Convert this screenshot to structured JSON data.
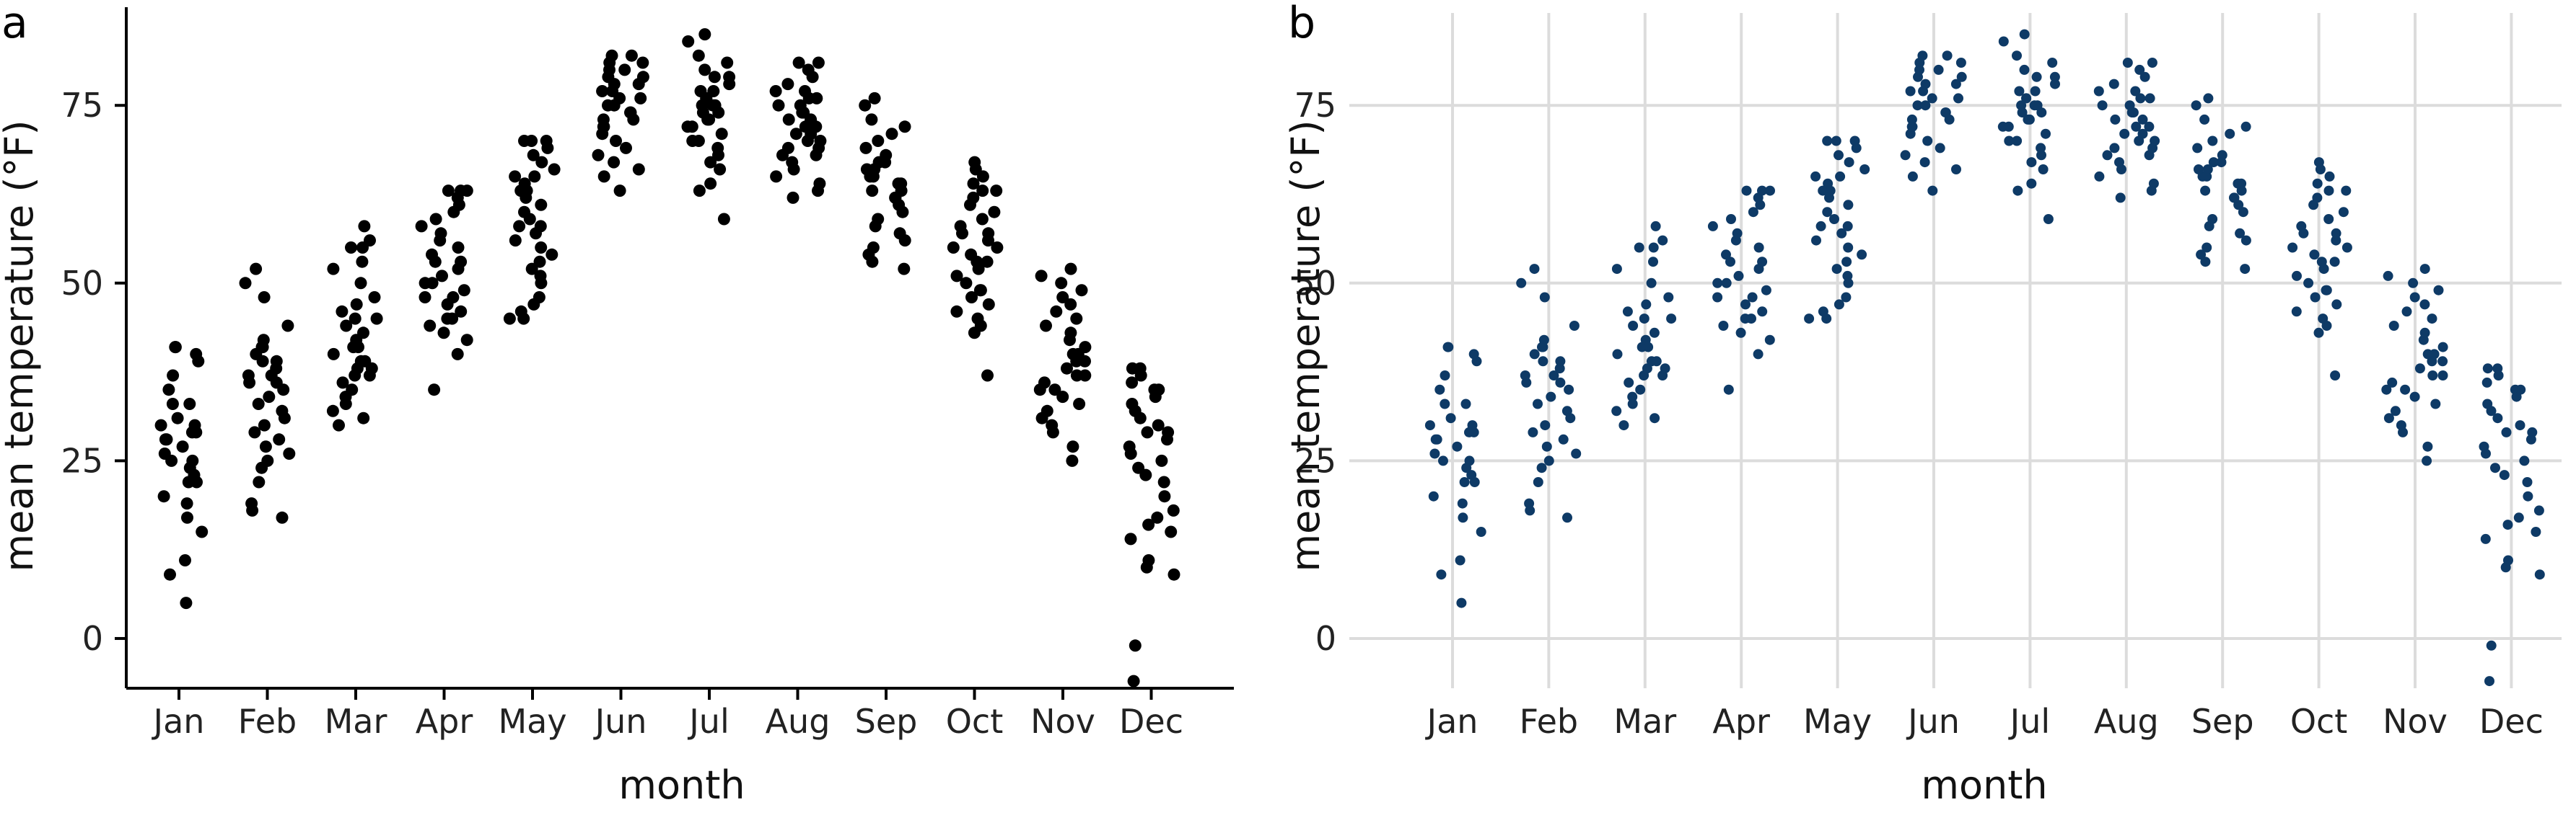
{
  "chart_data": [
    {
      "type": "scatter",
      "panel_label": "a",
      "style": "classic",
      "title": "",
      "xlabel": "month",
      "ylabel": "mean temperature (°F)",
      "categories": [
        "Jan",
        "Feb",
        "Mar",
        "Apr",
        "May",
        "Jun",
        "Jul",
        "Aug",
        "Sep",
        "Oct",
        "Nov",
        "Dec"
      ],
      "yticks": [
        0,
        25,
        50,
        75
      ],
      "ylim": [
        -7,
        88
      ],
      "grid": false,
      "point_color": "#000000",
      "values": [
        [
          5,
          9,
          11,
          15,
          17,
          19,
          20,
          22,
          22,
          23,
          24,
          25,
          25,
          26,
          27,
          28,
          28,
          29,
          29,
          30,
          30,
          31,
          33,
          33,
          35,
          37,
          39,
          40,
          41,
          41
        ],
        [
          17,
          18,
          19,
          22,
          24,
          25,
          26,
          27,
          28,
          29,
          30,
          31,
          32,
          33,
          34,
          35,
          36,
          36,
          37,
          37,
          38,
          39,
          39,
          40,
          41,
          41,
          42,
          44,
          48,
          50,
          52
        ],
        [
          30,
          31,
          32,
          33,
          34,
          35,
          36,
          37,
          37,
          38,
          38,
          39,
          39,
          40,
          41,
          41,
          42,
          43,
          44,
          45,
          45,
          46,
          47,
          48,
          50,
          52,
          53,
          55,
          55,
          56,
          58
        ],
        [
          35,
          40,
          42,
          43,
          44,
          45,
          45,
          46,
          47,
          48,
          48,
          49,
          50,
          50,
          51,
          52,
          53,
          53,
          54,
          55,
          56,
          57,
          58,
          59,
          60,
          61,
          62,
          63,
          63,
          63
        ],
        [
          45,
          45,
          46,
          47,
          48,
          50,
          51,
          52,
          53,
          54,
          55,
          56,
          57,
          58,
          58,
          59,
          60,
          61,
          62,
          63,
          63,
          64,
          65,
          65,
          66,
          67,
          68,
          69,
          70,
          70,
          70
        ],
        [
          63,
          65,
          66,
          67,
          68,
          69,
          70,
          71,
          72,
          72,
          73,
          73,
          74,
          74,
          75,
          75,
          76,
          76,
          77,
          77,
          78,
          78,
          79,
          79,
          80,
          80,
          81,
          81,
          82,
          82
        ],
        [
          59,
          63,
          64,
          66,
          67,
          68,
          69,
          70,
          70,
          71,
          72,
          72,
          73,
          73,
          74,
          74,
          75,
          75,
          75,
          76,
          76,
          77,
          77,
          78,
          79,
          79,
          80,
          81,
          82,
          84,
          85
        ],
        [
          62,
          63,
          64,
          65,
          66,
          67,
          68,
          68,
          69,
          69,
          70,
          70,
          71,
          71,
          72,
          72,
          73,
          73,
          74,
          74,
          75,
          75,
          76,
          76,
          77,
          77,
          78,
          79,
          80,
          81,
          81
        ],
        [
          52,
          53,
          54,
          55,
          56,
          57,
          58,
          59,
          60,
          61,
          62,
          62,
          63,
          63,
          64,
          64,
          65,
          65,
          66,
          66,
          67,
          67,
          68,
          69,
          70,
          71,
          72,
          73,
          75,
          76
        ],
        [
          37,
          43,
          44,
          45,
          46,
          47,
          48,
          49,
          49,
          50,
          51,
          52,
          53,
          53,
          54,
          55,
          55,
          56,
          57,
          57,
          58,
          59,
          60,
          61,
          62,
          63,
          63,
          64,
          65,
          66,
          67
        ],
        [
          25,
          27,
          29,
          30,
          31,
          32,
          33,
          34,
          35,
          35,
          36,
          37,
          37,
          38,
          39,
          39,
          40,
          40,
          41,
          42,
          43,
          44,
          45,
          46,
          47,
          48,
          49,
          50,
          51,
          52
        ],
        [
          -6,
          -1,
          9,
          10,
          11,
          14,
          15,
          16,
          17,
          18,
          20,
          22,
          23,
          24,
          25,
          26,
          27,
          28,
          29,
          29,
          30,
          31,
          32,
          33,
          34,
          35,
          35,
          36,
          37,
          38,
          38
        ]
      ]
    },
    {
      "type": "scatter",
      "panel_label": "b",
      "style": "grid",
      "title": "",
      "xlabel": "month",
      "ylabel": "mean temperature (°F)",
      "categories": [
        "Jan",
        "Feb",
        "Mar",
        "Apr",
        "May",
        "Jun",
        "Jul",
        "Aug",
        "Sep",
        "Oct",
        "Nov",
        "Dec"
      ],
      "yticks": [
        0,
        25,
        50,
        75
      ],
      "ylim": [
        -7,
        88
      ],
      "grid": true,
      "point_color": "#0e3a66",
      "grid_color": "#dcdcdc",
      "values": [
        [
          5,
          9,
          11,
          15,
          17,
          19,
          20,
          22,
          22,
          23,
          24,
          25,
          25,
          26,
          27,
          28,
          28,
          29,
          29,
          30,
          30,
          31,
          33,
          33,
          35,
          37,
          39,
          40,
          41,
          41
        ],
        [
          17,
          18,
          19,
          22,
          24,
          25,
          26,
          27,
          28,
          29,
          30,
          31,
          32,
          33,
          34,
          35,
          36,
          36,
          37,
          37,
          38,
          39,
          39,
          40,
          41,
          41,
          42,
          44,
          48,
          50,
          52
        ],
        [
          30,
          31,
          32,
          33,
          34,
          35,
          36,
          37,
          37,
          38,
          38,
          39,
          39,
          40,
          41,
          41,
          42,
          43,
          44,
          45,
          45,
          46,
          47,
          48,
          50,
          52,
          53,
          55,
          55,
          56,
          58
        ],
        [
          35,
          40,
          42,
          43,
          44,
          45,
          45,
          46,
          47,
          48,
          48,
          49,
          50,
          50,
          51,
          52,
          53,
          53,
          54,
          55,
          56,
          57,
          58,
          59,
          60,
          61,
          62,
          63,
          63,
          63
        ],
        [
          45,
          45,
          46,
          47,
          48,
          50,
          51,
          52,
          53,
          54,
          55,
          56,
          57,
          58,
          58,
          59,
          60,
          61,
          62,
          63,
          63,
          64,
          65,
          65,
          66,
          67,
          68,
          69,
          70,
          70,
          70
        ],
        [
          63,
          65,
          66,
          67,
          68,
          69,
          70,
          71,
          72,
          72,
          73,
          73,
          74,
          74,
          75,
          75,
          76,
          76,
          77,
          77,
          78,
          78,
          79,
          79,
          80,
          80,
          81,
          81,
          82,
          82
        ],
        [
          59,
          63,
          64,
          66,
          67,
          68,
          69,
          70,
          70,
          71,
          72,
          72,
          73,
          73,
          74,
          74,
          75,
          75,
          75,
          76,
          76,
          77,
          77,
          78,
          79,
          79,
          80,
          81,
          82,
          84,
          85
        ],
        [
          62,
          63,
          64,
          65,
          66,
          67,
          68,
          68,
          69,
          69,
          70,
          70,
          71,
          71,
          72,
          72,
          73,
          73,
          74,
          74,
          75,
          75,
          76,
          76,
          77,
          77,
          78,
          79,
          80,
          81,
          81
        ],
        [
          52,
          53,
          54,
          55,
          56,
          57,
          58,
          59,
          60,
          61,
          62,
          62,
          63,
          63,
          64,
          64,
          65,
          65,
          66,
          66,
          67,
          67,
          68,
          69,
          70,
          71,
          72,
          73,
          75,
          76
        ],
        [
          37,
          43,
          44,
          45,
          46,
          47,
          48,
          49,
          49,
          50,
          51,
          52,
          53,
          53,
          54,
          55,
          55,
          56,
          57,
          57,
          58,
          59,
          60,
          61,
          62,
          63,
          63,
          64,
          65,
          66,
          67
        ],
        [
          25,
          27,
          29,
          30,
          31,
          32,
          33,
          34,
          35,
          35,
          36,
          37,
          37,
          38,
          39,
          39,
          40,
          40,
          41,
          42,
          43,
          44,
          45,
          46,
          47,
          48,
          49,
          50,
          51,
          52
        ],
        [
          -6,
          -1,
          9,
          10,
          11,
          14,
          15,
          16,
          17,
          18,
          20,
          22,
          23,
          24,
          25,
          26,
          27,
          28,
          29,
          29,
          30,
          31,
          32,
          33,
          34,
          35,
          35,
          36,
          37,
          38,
          38
        ]
      ]
    }
  ]
}
